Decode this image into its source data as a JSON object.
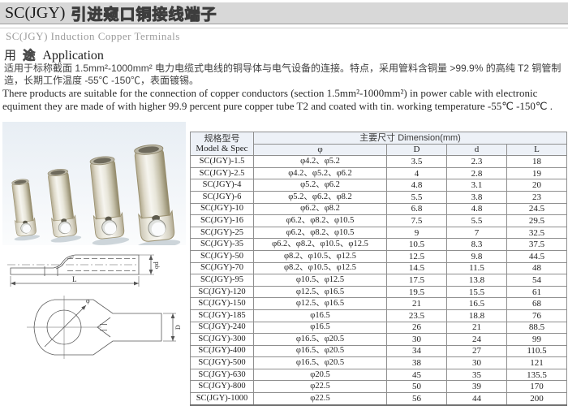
{
  "header": {
    "title_model": "SC(JGY)",
    "title_zh": "引进窥口铜接线端子",
    "subtitle": "SC(JGY) Induction  Copper Terminals"
  },
  "application": {
    "heading_zh_1": "用",
    "heading_zh_2": "途",
    "heading_en": "Application",
    "desc_zh": "适用于标称截面 1.5mm²-1000mm² 电力电缆式电线的铜导体与电气设备的连接。特点，采用管料含铜量 >99.9% 的高纯 T2 铜管制造，长期工作温度 -55℃ -150℃，表面镀锡。",
    "desc_en": "There products are suitable for the connection of copper conductors (section 1.5mm²-1000mm²) in power cable with electronic equiment they are made of with higher 99.9 percent pure copper tube T2 and coated with tin. working temperature -55℃ -150℃ ."
  },
  "table": {
    "model_header_zh": "规格型号",
    "model_header_en": "Model & Spec",
    "dimension_header": "主要尺寸 Dimension(mm)",
    "columns": [
      "φ",
      "D",
      "d",
      "L"
    ],
    "rows": [
      {
        "model": "SC(JGY)-1.5",
        "phi": "φ4.2、φ5.2",
        "D": "3.5",
        "d": "2.3",
        "L": "18"
      },
      {
        "model": "SC(JGY)-2.5",
        "phi": "φ4.2、φ5.2、φ6.2",
        "D": "4",
        "d": "2.8",
        "L": "19"
      },
      {
        "model": "SC(JGY)-4",
        "phi": "φ5.2、φ6.2",
        "D": "4.8",
        "d": "3.1",
        "L": "20"
      },
      {
        "model": "SC(JGY)-6",
        "phi": "φ5.2、φ6.2、φ8.2",
        "D": "5.5",
        "d": "3.8",
        "L": "23"
      },
      {
        "model": "SC(JGY)-10",
        "phi": "φ6.2、φ8.2",
        "D": "6.8",
        "d": "4.8",
        "L": "24.5"
      },
      {
        "model": "SC(JGY)-16",
        "phi": "φ6.2、φ8.2、φ10.5",
        "D": "7.5",
        "d": "5.5",
        "L": "29.5"
      },
      {
        "model": "SC(JGY)-25",
        "phi": "φ6.2、φ8.2、φ10.5",
        "D": "9",
        "d": "7",
        "L": "32.5"
      },
      {
        "model": "SC(JGY)-35",
        "phi": "φ6.2、φ8.2、φ10.5、φ12.5",
        "D": "10.5",
        "d": "8.3",
        "L": "37.5"
      },
      {
        "model": "SC(JGY)-50",
        "phi": "φ8.2、φ10.5、φ12.5",
        "D": "12.5",
        "d": "9.8",
        "L": "44.5"
      },
      {
        "model": "SC(JGY)-70",
        "phi": "φ8.2、φ10.5、φ12.5",
        "D": "14.5",
        "d": "11.5",
        "L": "48"
      },
      {
        "model": "SC(JGY)-95",
        "phi": "φ10.5、φ12.5",
        "D": "17.5",
        "d": "13.8",
        "L": "54"
      },
      {
        "model": "SC(JGY)-120",
        "phi": "φ12.5、φ16.5",
        "D": "19.5",
        "d": "15.5",
        "L": "61"
      },
      {
        "model": "SC(JGY)-150",
        "phi": "φ12.5、φ16.5",
        "D": "21",
        "d": "16.5",
        "L": "68"
      },
      {
        "model": "SC(JGY)-185",
        "phi": "φ16.5",
        "D": "23.5",
        "d": "18.8",
        "L": "76"
      },
      {
        "model": "SC(JGY)-240",
        "phi": "φ16.5",
        "D": "26",
        "d": "21",
        "L": "88.5"
      },
      {
        "model": "SC(JGY)-300",
        "phi": "φ16.5、φ20.5",
        "D": "30",
        "d": "24",
        "L": "99"
      },
      {
        "model": "SC(JGY)-400",
        "phi": "φ16.5、φ20.5",
        "D": "34",
        "d": "27",
        "L": "110.5"
      },
      {
        "model": "SC(JGY)-500",
        "phi": "φ16.5、φ20.5",
        "D": "38",
        "d": "30",
        "L": "121"
      },
      {
        "model": "SC(JGY)-630",
        "phi": "φ20.5",
        "D": "45",
        "d": "35",
        "L": "135.5"
      },
      {
        "model": "SC(JGY)-800",
        "phi": "φ22.5",
        "D": "50",
        "d": "39",
        "L": "170"
      },
      {
        "model": "SC(JGY)-1000",
        "phi": "φ22.5",
        "D": "56",
        "d": "44",
        "L": "200"
      }
    ]
  },
  "drawing": {
    "dim_L": "L",
    "dim_phi_d": "φd",
    "dim_phi": "φ",
    "dim_D": "D"
  },
  "colors": {
    "header_bar_bg": "#d8d8d8",
    "table_header_bg": "#edf1f7",
    "table_border": "#8f8f8f",
    "photo_bg": "#e8eef4"
  }
}
